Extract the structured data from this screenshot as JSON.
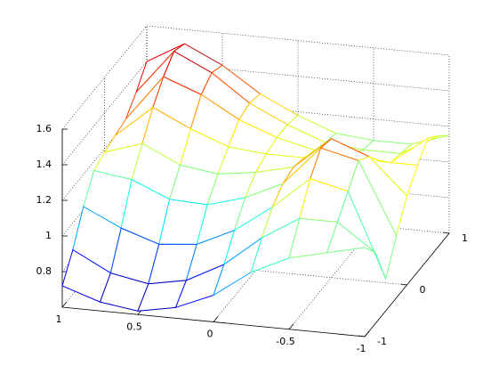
{
  "chart_data": {
    "type": "mesh",
    "x": [
      -1,
      -0.75,
      -0.5,
      -0.25,
      0,
      0.25,
      0.5,
      0.75,
      1
    ],
    "y": [
      -1,
      -0.75,
      -0.5,
      -0.25,
      0,
      0.25,
      0.5,
      0.75,
      1
    ],
    "z": [
      [
        1.1,
        1.05,
        1.0,
        0.9,
        0.75,
        0.66,
        0.62,
        0.65,
        0.72
      ],
      [
        1.0,
        1.15,
        1.15,
        1.02,
        0.85,
        0.74,
        0.7,
        0.74,
        0.85
      ],
      [
        0.78,
        1.25,
        1.3,
        1.12,
        0.97,
        0.87,
        0.85,
        0.92,
        1.02
      ],
      [
        0.95,
        1.35,
        1.4,
        1.18,
        1.08,
        1.02,
        1.03,
        1.12,
        1.15
      ],
      [
        1.1,
        1.3,
        1.38,
        1.2,
        1.15,
        1.12,
        1.15,
        1.25,
        1.18
      ],
      [
        1.2,
        1.2,
        1.25,
        1.18,
        1.18,
        1.2,
        1.28,
        1.38,
        1.2
      ],
      [
        1.28,
        1.12,
        1.15,
        1.15,
        1.2,
        1.28,
        1.4,
        1.48,
        1.22
      ],
      [
        1.22,
        1.1,
        1.1,
        1.12,
        1.2,
        1.3,
        1.45,
        1.55,
        1.3
      ],
      [
        1.15,
        1.08,
        1.08,
        1.1,
        1.18,
        1.28,
        1.42,
        1.52,
        1.4
      ]
    ],
    "xlim": [
      -1,
      1
    ],
    "ylim": [
      -1,
      1
    ],
    "zlim": [
      0.6,
      1.6
    ],
    "xticks": [
      -1,
      -0.5,
      0,
      0.5,
      1
    ],
    "yticks": [
      -1,
      0,
      1
    ],
    "zticks": [
      0.8,
      1,
      1.2,
      1.4,
      1.6
    ],
    "grid": true,
    "colormap": "jet"
  }
}
